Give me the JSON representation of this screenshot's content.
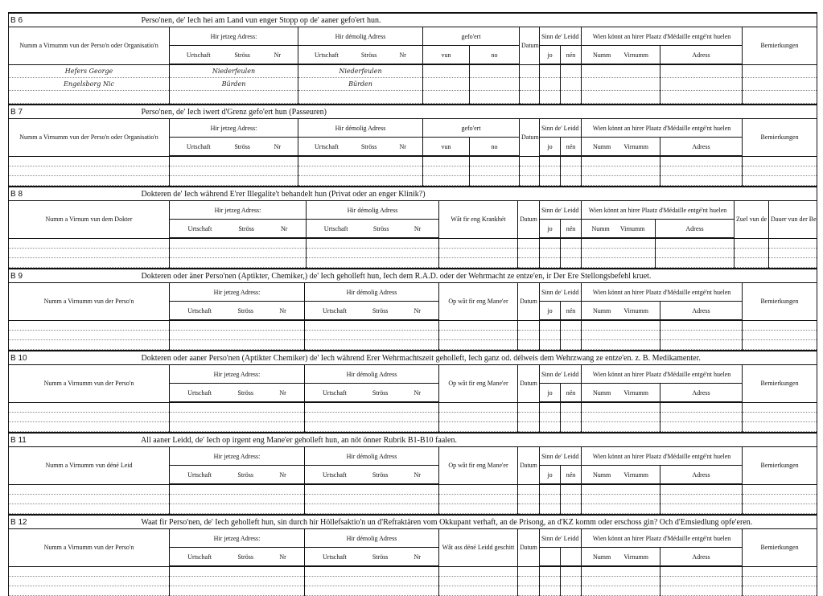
{
  "sections": [
    {
      "code": "B 6",
      "title": "Perso'nen, de' Iech hei am Land vun enger Stopp op de' aaner gefo'ert hun.",
      "layout": "standard_gefoert",
      "headers": [
        {
          "label": "Numm a Virnumm vun der Perso'n oder Organisatio'n"
        },
        {
          "label": "Hir jetzeg Adress:",
          "subs": [
            [
              "Urtschaft",
              "Ströss",
              "Nr"
            ]
          ]
        },
        {
          "label": "Hir démolig Adress",
          "subs": [
            [
              "Urtschaft",
              "Ströss",
              "Nr"
            ]
          ]
        },
        {
          "label": "gefo'ert",
          "subs": [
            [
              "vun"
            ],
            [
              "no"
            ]
          ]
        },
        {
          "label": "Datum"
        },
        {
          "label": "Sinn de' Leidd nach um Liewen",
          "subs": [
            [
              "jo"
            ],
            [
              "nén"
            ]
          ]
        },
        {
          "label": "Wien könnt an hirer Plaatz d'Médaille entgé'nt huelen",
          "subs": [
            [
              "Numm",
              "Virnumm"
            ],
            [
              "Adress"
            ]
          ]
        },
        {
          "label": "Bemierkungen"
        }
      ],
      "rows": [
        [
          "Hefers George",
          "Niederfeulen",
          "Niederfeulen",
          "",
          "",
          "",
          "",
          "",
          "",
          "",
          "",
          ""
        ],
        [
          "Engelsborg Nic",
          "Bürden",
          "Bürden",
          "",
          "",
          "",
          "",
          "",
          "",
          "",
          "",
          ""
        ],
        [
          "",
          "",
          "",
          "",
          "",
          "",
          "",
          "",
          "",
          "",
          "",
          ""
        ]
      ]
    },
    {
      "code": "B 7",
      "title": "Perso'nen, de' Iech iwert d'Grenz gefo'ert hun (Passeuren)",
      "layout": "standard_gefoert",
      "headers": [
        {
          "label": "Numm a Virnumm vun der Perso'n oder Organisatio'n"
        },
        {
          "label": "Hir jetzeg Adress:",
          "subs": [
            [
              "Urtschaft",
              "Ströss",
              "Nr"
            ]
          ]
        },
        {
          "label": "Hir démolig Adress",
          "subs": [
            [
              "Urtschaft",
              "Ströss",
              "Nr"
            ]
          ]
        },
        {
          "label": "gefo'ert",
          "subs": [
            [
              "vun"
            ],
            [
              "no"
            ]
          ]
        },
        {
          "label": "Datum"
        },
        {
          "label": "Sinn de' Leidd nach um Liewen",
          "subs": [
            [
              "jo"
            ],
            [
              "nén"
            ]
          ]
        },
        {
          "label": "Wien könnt an hirer Plaatz d'Médaille entgé'nt huelen",
          "subs": [
            [
              "Numm",
              "Virnumm"
            ],
            [
              "Adress"
            ]
          ]
        },
        {
          "label": "Bemierkungen"
        }
      ],
      "rows": [
        [
          "",
          "",
          "",
          "",
          "",
          "",
          "",
          "",
          "",
          "",
          "",
          ""
        ],
        [
          "",
          "",
          "",
          "",
          "",
          "",
          "",
          "",
          "",
          "",
          "",
          ""
        ],
        [
          "",
          "",
          "",
          "",
          "",
          "",
          "",
          "",
          "",
          "",
          "",
          ""
        ]
      ]
    },
    {
      "code": "B 8",
      "title": "Dokteren de' Iech während E'rer Illegalite't behandelt hun (Privat oder an enger Klinik?)",
      "layout": "doctor",
      "headers": [
        {
          "label": "Numm a Virnum vun dem Dokter"
        },
        {
          "label": "Hir jetzeg Adress:",
          "subs": [
            [
              "Urtschaft",
              "Ströss",
              "Nr"
            ]
          ]
        },
        {
          "label": "Hir démolig Adress",
          "subs": [
            [
              "Urtschaft",
              "Ströss",
              "Nr"
            ]
          ]
        },
        {
          "label": "Wât fir eng Krankhét"
        },
        {
          "label": "Datum"
        },
        {
          "label": "Sinn de' Leidd nach um Liewen",
          "subs": [
            [
              "jo"
            ],
            [
              "nén"
            ]
          ]
        },
        {
          "label": "Wien könnt an hirer Plaatz d'Médaille entgé'nt huelen",
          "subs": [
            [
              "Numm",
              "Virnumm"
            ],
            [
              "Adress"
            ]
          ]
        },
        {
          "label": "Zuel vun de Visiten"
        },
        {
          "label": "Dauer vun der Behandl."
        }
      ],
      "rows": [
        [
          "",
          "",
          "",
          "",
          "",
          "",
          "",
          "",
          "",
          "",
          ""
        ],
        [
          "",
          "",
          "",
          "",
          "",
          "",
          "",
          "",
          "",
          "",
          ""
        ],
        [
          "",
          "",
          "",
          "",
          "",
          "",
          "",
          "",
          "",
          "",
          ""
        ]
      ]
    },
    {
      "code": "B 9",
      "title": "Dokteren oder äner Perso'nen (Aptikter, Chemiker,) de' Iech geholleft hun, Iech dem R.A.D. oder der Wehrmacht ze entze'en, ir Der Ere Stellongsbefehl kruet.",
      "layout": "standard",
      "headers": [
        {
          "label": "Numm a Virnumm vun der Perso'n"
        },
        {
          "label": "Hir jetzeg Adress:",
          "subs": [
            [
              "Urtschaft",
              "Ströss",
              "Nr"
            ]
          ]
        },
        {
          "label": "Hir démolig Adress",
          "subs": [
            [
              "Urtschaft",
              "Ströss",
              "Nr"
            ]
          ]
        },
        {
          "label": "Op wât fir eng Mane'er"
        },
        {
          "label": "Datum"
        },
        {
          "label": "Sinn de' Leidd nach um Liewen",
          "subs": [
            [
              "jo"
            ],
            [
              "nén"
            ]
          ]
        },
        {
          "label": "Wien könnt an hirer Plaatz d'Médaille entgé'nt huelen",
          "subs": [
            [
              "Numm",
              "Virnumm"
            ],
            [
              "Adress"
            ]
          ]
        },
        {
          "label": "Bemierkungen"
        }
      ],
      "rows": [
        [
          "",
          "",
          "",
          "",
          "",
          "",
          "",
          "",
          "",
          ""
        ],
        [
          "",
          "",
          "",
          "",
          "",
          "",
          "",
          "",
          "",
          ""
        ],
        [
          "",
          "",
          "",
          "",
          "",
          "",
          "",
          "",
          "",
          ""
        ]
      ]
    },
    {
      "code": "B 10",
      "title": "Dokteren oder aaner Perso'nen (Aptikter Chemiker) de' Iech während Erer Wehrmachtszeit geholleft, Iech ganz od. délweis dem Wehrzwang ze entze'en. z. B. Medikamenter.",
      "layout": "standard",
      "headers": [
        {
          "label": "Numm a Virnumm vun der Perso'n"
        },
        {
          "label": "Hir jetzeg Adress:",
          "subs": [
            [
              "Urtschaft",
              "Ströss",
              "Nr"
            ]
          ]
        },
        {
          "label": "Hir démolig Adress",
          "subs": [
            [
              "Urtschaft",
              "Ströss",
              "Nr"
            ]
          ]
        },
        {
          "label": "Op wât fir eng Mane'er"
        },
        {
          "label": "Datum"
        },
        {
          "label": "Sinn de' Leidd nach um Liewen",
          "subs": [
            [
              "jo"
            ],
            [
              "nén"
            ]
          ]
        },
        {
          "label": "Wien könnt an hirer Plaatz d'Médaille entgé'nt huelen",
          "subs": [
            [
              "Numm",
              "Virnumm"
            ],
            [
              "Adress"
            ]
          ]
        },
        {
          "label": "Bemierkungen"
        }
      ],
      "rows": [
        [
          "",
          "",
          "",
          "",
          "",
          "",
          "",
          "",
          "",
          ""
        ],
        [
          "",
          "",
          "",
          "",
          "",
          "",
          "",
          "",
          "",
          ""
        ],
        [
          "",
          "",
          "",
          "",
          "",
          "",
          "",
          "",
          "",
          ""
        ]
      ]
    },
    {
      "code": "B 11",
      "title": "All aaner Leidd, de' Iech op irgent eng Mane'er geholleft hun, an nöt önner Rubrik B1-B10 faalen.",
      "layout": "standard",
      "headers": [
        {
          "label": "Numm a Virnumm vun déné Leid"
        },
        {
          "label": "Hir jetzeg Adress:",
          "subs": [
            [
              "Urtschaft",
              "Ströss",
              "Nr"
            ]
          ]
        },
        {
          "label": "Hir démolig Adress",
          "subs": [
            [
              "Urtschaft",
              "Ströss",
              "Nr"
            ]
          ]
        },
        {
          "label": "Op wât fir eng Mane'er"
        },
        {
          "label": "Datum"
        },
        {
          "label": "Sinn de' Leidd nach um Liewen",
          "subs": [
            [
              "jo"
            ],
            [
              "nén"
            ]
          ]
        },
        {
          "label": "Wien könnt an hirer Plaatz d'Médaille entgé'nt huelen",
          "subs": [
            [
              "Numm",
              "Virnumm"
            ],
            [
              "Adress"
            ]
          ]
        },
        {
          "label": "Bemierkungen"
        }
      ],
      "rows": [
        [
          "",
          "",
          "",
          "",
          "",
          "",
          "",
          "",
          "",
          ""
        ],
        [
          "",
          "",
          "",
          "",
          "",
          "",
          "",
          "",
          "",
          ""
        ],
        [
          "",
          "",
          "",
          "",
          "",
          "",
          "",
          "",
          "",
          ""
        ]
      ]
    },
    {
      "code": "B 12",
      "title": "Waat fir Perso'nen, de' Iech geholleft hun, sin durch hir Höllefsaktio'n un d'Refraktären vom Okkupant verhaft, an de Prisong, an d'KZ komm oder erschoss gin? Och d'Emsiedlung opfe'eren.",
      "layout": "standard",
      "headers": [
        {
          "label": "Numm a Virnumm vun der Perso'n"
        },
        {
          "label": "Hir jetzeg Adress:",
          "subs": [
            [
              "Urtschaft",
              "Ströss",
              "Nr"
            ]
          ]
        },
        {
          "label": "Hir démolig Adress",
          "subs": [
            [
              "Urtschaft",
              "Ströss",
              "Nr"
            ]
          ]
        },
        {
          "label": "Wât ass déné Leidd geschitt"
        },
        {
          "label": "Datum"
        },
        {
          "label": "Sinn de' Leidd nach um Liewen",
          "subs": [
            [
              ""
            ],
            [
              ""
            ]
          ]
        },
        {
          "label": "Wien könnt an hirer Plaatz d'Médaille entgé'nt huelen",
          "subs": [
            [
              "Numm",
              "Virnumm"
            ],
            [
              "Adress"
            ]
          ]
        },
        {
          "label": "Bemierkungen"
        }
      ],
      "rows": [
        [
          "",
          "",
          "",
          "",
          "",
          "",
          "",
          "",
          "",
          ""
        ],
        [
          "",
          "",
          "",
          "",
          "",
          "",
          "",
          "",
          "",
          ""
        ],
        [
          "",
          "",
          "",
          "",
          "",
          "",
          "",
          "",
          "",
          ""
        ]
      ]
    }
  ]
}
